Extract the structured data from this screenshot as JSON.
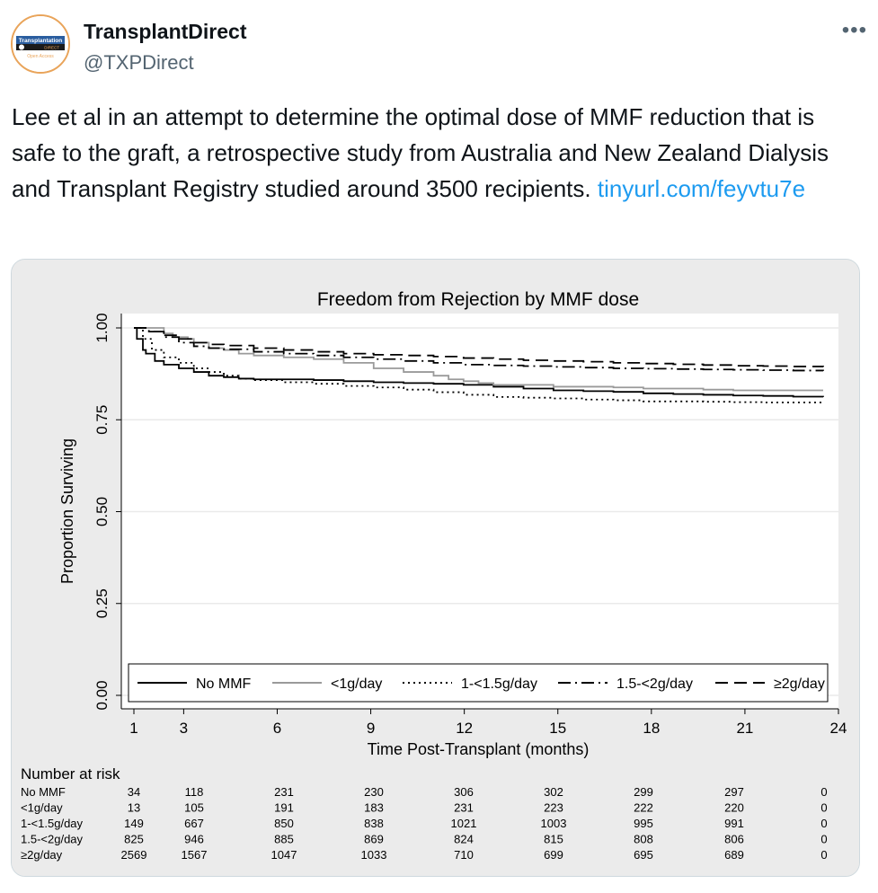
{
  "tweet": {
    "author_name": "TransplantDirect",
    "author_handle": "@TXPDirect",
    "more_label": "•••",
    "avatar_text_top": "Transplantation",
    "avatar_text_mid": "DIRECT",
    "avatar_text_bottom": "Open Access",
    "text": "Lee et al in an attempt to determine the optimal dose of MMF reduction that is safe to the graft, a retrospective study from Australia and New Zealand Dialysis and Transplant Registry studied around 3500 recipients.",
    "link_text": "tinyurl.com/feyvtu7e"
  },
  "colors": {
    "plot_bg": "#ffffff",
    "outer_bg": "#ebebeb",
    "grid": "#eaeaea",
    "link": "#1d9bf0"
  },
  "chart_data": {
    "type": "line",
    "title": "Freedom from Rejection by MMF dose",
    "xlabel": "Time Post-Transplant (months)",
    "ylabel": "Proportion Surviving",
    "xlim": [
      1,
      24
    ],
    "ylim": [
      0,
      1
    ],
    "xticks": [
      "1",
      "3",
      "6",
      "9",
      "12",
      "15",
      "18",
      "21",
      "24"
    ],
    "xtick_values": [
      1,
      3,
      6,
      9,
      12,
      15,
      18,
      21,
      24
    ],
    "yticks": [
      "0.00",
      "0.25",
      "0.50",
      "0.75",
      "1.00"
    ],
    "ytick_values": [
      0,
      0.25,
      0.5,
      0.75,
      1.0
    ],
    "grid": true,
    "legend_position": "bottom-inside",
    "series": [
      {
        "name": "No MMF",
        "style": "solid",
        "color": "#000000",
        "x": [
          1,
          1.1,
          1.3,
          1.4,
          1.7,
          2.0,
          2.5,
          3.0,
          3.5,
          4.0,
          4.5,
          5.0,
          6.0,
          7.0,
          8.0,
          9.0,
          10.0,
          11.0,
          12.0,
          13.0,
          14.0,
          15.0,
          16.0,
          17.0,
          18.0,
          19.0,
          20.0,
          21.0,
          22.0,
          23.0,
          24.0
        ],
        "y": [
          1.0,
          0.97,
          0.94,
          0.93,
          0.91,
          0.9,
          0.89,
          0.88,
          0.87,
          0.866,
          0.862,
          0.86,
          0.86,
          0.858,
          0.855,
          0.852,
          0.85,
          0.848,
          0.845,
          0.84,
          0.835,
          0.83,
          0.828,
          0.826,
          0.822,
          0.82,
          0.818,
          0.816,
          0.815,
          0.813,
          0.812
        ]
      },
      {
        "name": "<1g/day",
        "style": "solid",
        "color": "#9a9a9a",
        "x": [
          1,
          1.5,
          2.0,
          2.3,
          2.8,
          3.0,
          3.5,
          4.0,
          4.5,
          5.0,
          6.0,
          7.0,
          8.0,
          9.0,
          10.0,
          11.0,
          11.5,
          12.0,
          12.5,
          13.0,
          14.0,
          15.0,
          16.0,
          17.0,
          18.0,
          19.0,
          20.0,
          21.0,
          22.0,
          23.0,
          24.0
        ],
        "y": [
          1.0,
          1.0,
          0.985,
          0.975,
          0.97,
          0.96,
          0.945,
          0.94,
          0.93,
          0.925,
          0.92,
          0.915,
          0.905,
          0.89,
          0.88,
          0.87,
          0.86,
          0.855,
          0.85,
          0.845,
          0.845,
          0.84,
          0.84,
          0.838,
          0.835,
          0.835,
          0.832,
          0.83,
          0.83,
          0.83,
          0.83
        ]
      },
      {
        "name": "1-<1.5g/day",
        "style": "dotted",
        "color": "#000000",
        "x": [
          1,
          1.3,
          1.6,
          2.0,
          2.5,
          3.0,
          3.5,
          4.0,
          4.5,
          5.0,
          6.0,
          7.0,
          8.0,
          9.0,
          10.0,
          11.0,
          12.0,
          13.0,
          14.0,
          15.0,
          16.0,
          17.0,
          18.0,
          19.0,
          20.0,
          21.0,
          22.0,
          23.0,
          24.0
        ],
        "y": [
          1.0,
          0.97,
          0.94,
          0.92,
          0.905,
          0.89,
          0.88,
          0.87,
          0.862,
          0.858,
          0.852,
          0.848,
          0.842,
          0.838,
          0.832,
          0.825,
          0.818,
          0.812,
          0.81,
          0.808,
          0.805,
          0.803,
          0.8,
          0.8,
          0.799,
          0.798,
          0.797,
          0.797,
          0.796
        ]
      },
      {
        "name": "1.5-<2g/day",
        "style": "dashdot",
        "color": "#000000",
        "x": [
          1,
          1.5,
          2.0,
          2.5,
          3.0,
          3.5,
          4.0,
          5.0,
          6.0,
          7.0,
          8.0,
          9.0,
          10.0,
          11.0,
          12.0,
          13.0,
          14.0,
          15.0,
          16.0,
          17.0,
          18.0,
          19.0,
          20.0,
          21.0,
          22.0,
          23.0,
          24.0
        ],
        "y": [
          1.0,
          0.99,
          0.975,
          0.96,
          0.95,
          0.945,
          0.942,
          0.935,
          0.93,
          0.925,
          0.92,
          0.915,
          0.91,
          0.905,
          0.9,
          0.898,
          0.896,
          0.894,
          0.892,
          0.89,
          0.889,
          0.888,
          0.887,
          0.886,
          0.885,
          0.884,
          0.883
        ]
      },
      {
        "name": "≥2g/day",
        "style": "dashed",
        "color": "#000000",
        "x": [
          1,
          1.5,
          2.0,
          2.5,
          3.0,
          3.5,
          4.0,
          5.0,
          6.0,
          7.0,
          8.0,
          9.0,
          10.0,
          11.0,
          12.0,
          13.0,
          14.0,
          15.0,
          16.0,
          17.0,
          18.0,
          19.0,
          20.0,
          21.0,
          22.0,
          23.0,
          24.0
        ],
        "y": [
          1.0,
          0.99,
          0.98,
          0.97,
          0.96,
          0.955,
          0.952,
          0.945,
          0.94,
          0.935,
          0.93,
          0.927,
          0.925,
          0.922,
          0.918,
          0.915,
          0.912,
          0.91,
          0.908,
          0.905,
          0.903,
          0.901,
          0.899,
          0.897,
          0.896,
          0.895,
          0.894
        ]
      }
    ],
    "risk_table": {
      "title": "Number at risk",
      "rows": [
        {
          "label": "No MMF",
          "values": [
            "34",
            "118",
            "231",
            "230",
            "306",
            "302",
            "299",
            "297",
            "0"
          ]
        },
        {
          "label": "<1g/day",
          "values": [
            "13",
            "105",
            "191",
            "183",
            "231",
            "223",
            "222",
            "220",
            "0"
          ]
        },
        {
          "label": "1-<1.5g/day",
          "values": [
            "149",
            "667",
            "850",
            "838",
            "1021",
            "1003",
            "995",
            "991",
            "0"
          ]
        },
        {
          "label": "1.5-<2g/day",
          "values": [
            "825",
            "946",
            "885",
            "869",
            "824",
            "815",
            "808",
            "806",
            "0"
          ]
        },
        {
          "label": "≥2g/day",
          "values": [
            "2569",
            "1567",
            "1047",
            "1033",
            "710",
            "699",
            "695",
            "689",
            "0"
          ]
        }
      ]
    }
  }
}
